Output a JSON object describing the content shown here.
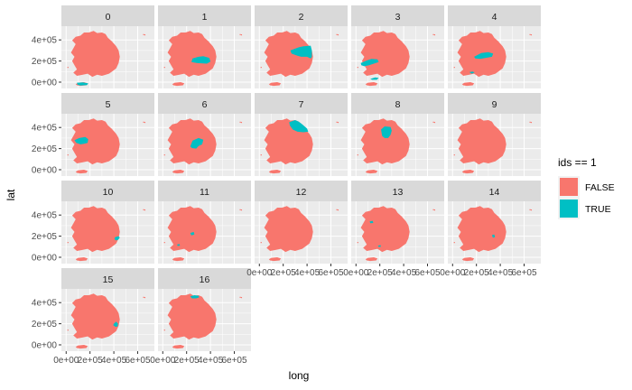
{
  "chart_data": {
    "type": "faceted-map",
    "xlabel": "long",
    "ylabel": "lat",
    "x_ticks": [
      "0e+00",
      "2e+05",
      "4e+05",
      "6e+05"
    ],
    "y_ticks": [
      "0e+00",
      "2e+05",
      "4e+05"
    ],
    "xlim": [
      -40000,
      740000
    ],
    "ylim": [
      -60000,
      530000
    ],
    "legend": {
      "title": "ids == 1",
      "placement": "right",
      "entries": [
        {
          "label": "FALSE",
          "color": "#F8766D"
        },
        {
          "label": "TRUE",
          "color": "#00BFC4"
        }
      ]
    },
    "base_shape": {
      "mainland": [
        [
          330000,
          455000
        ],
        [
          300000,
          470000
        ],
        [
          260000,
          465000
        ],
        [
          230000,
          485000
        ],
        [
          190000,
          470000
        ],
        [
          150000,
          470000
        ],
        [
          120000,
          440000
        ],
        [
          80000,
          430000
        ],
        [
          50000,
          395000
        ],
        [
          80000,
          360000
        ],
        [
          60000,
          320000
        ],
        [
          40000,
          280000
        ],
        [
          70000,
          240000
        ],
        [
          50000,
          200000
        ],
        [
          70000,
          160000
        ],
        [
          90000,
          120000
        ],
        [
          60000,
          90000
        ],
        [
          90000,
          60000
        ],
        [
          140000,
          70000
        ],
        [
          180000,
          80000
        ],
        [
          220000,
          50000
        ],
        [
          260000,
          70000
        ],
        [
          300000,
          60000
        ],
        [
          360000,
          80000
        ],
        [
          420000,
          130000
        ],
        [
          440000,
          180000
        ],
        [
          450000,
          240000
        ],
        [
          440000,
          300000
        ],
        [
          420000,
          340000
        ],
        [
          380000,
          390000
        ],
        [
          350000,
          420000
        ]
      ],
      "jeju": [
        [
          80000,
          -20000
        ],
        [
          100000,
          -5000
        ],
        [
          150000,
          0
        ],
        [
          180000,
          -10000
        ],
        [
          170000,
          -30000
        ],
        [
          120000,
          -35000
        ],
        [
          90000,
          -30000
        ]
      ],
      "islets": [
        [
          650000,
          450000
        ],
        [
          660000,
          448000
        ],
        [
          15000,
          140000
        ]
      ]
    },
    "facets": [
      {
        "label": "0",
        "true_regions": [
          [
            [
              90000,
              -5000
            ],
            [
              140000,
              -2000
            ],
            [
              185000,
              -12000
            ],
            [
              175000,
              -28000
            ],
            [
              120000,
              -32000
            ],
            [
              95000,
              -25000
            ]
          ]
        ]
      },
      {
        "label": "1",
        "true_regions": [
          [
            [
              240000,
              190000
            ],
            [
              290000,
              180000
            ],
            [
              370000,
              175000
            ],
            [
              400000,
              195000
            ],
            [
              390000,
              230000
            ],
            [
              340000,
              245000
            ],
            [
              300000,
              240000
            ],
            [
              250000,
              225000
            ]
          ]
        ]
      },
      {
        "label": "2",
        "true_regions": [
          [
            [
              260000,
              300000
            ],
            [
              330000,
              330000
            ],
            [
              370000,
              340000
            ],
            [
              430000,
              345000
            ],
            [
              440000,
              300000
            ],
            [
              440000,
              240000
            ],
            [
              430000,
              225000
            ],
            [
              400000,
              240000
            ],
            [
              350000,
              240000
            ],
            [
              320000,
              250000
            ],
            [
              270000,
              270000
            ]
          ]
        ]
      },
      {
        "label": "3",
        "true_regions": [
          [
            [
              40000,
              180000
            ],
            [
              90000,
              205000
            ],
            [
              130000,
              220000
            ],
            [
              180000,
              215000
            ],
            [
              190000,
              190000
            ],
            [
              150000,
              175000
            ],
            [
              110000,
              160000
            ],
            [
              70000,
              150000
            ],
            [
              45000,
              160000
            ]
          ],
          [
            [
              120000,
              30000
            ],
            [
              160000,
              45000
            ],
            [
              190000,
              40000
            ],
            [
              175000,
              22000
            ],
            [
              135000,
              22000
            ]
          ]
        ]
      },
      {
        "label": "4",
        "true_regions": [
          [
            [
              180000,
              240000
            ],
            [
              240000,
              275000
            ],
            [
              300000,
              285000
            ],
            [
              340000,
              270000
            ],
            [
              330000,
              240000
            ],
            [
              280000,
              230000
            ],
            [
              230000,
              220000
            ],
            [
              190000,
              225000
            ]
          ],
          [
            [
              140000,
              95000
            ],
            [
              170000,
              100000
            ],
            [
              185000,
              90000
            ],
            [
              160000,
              80000
            ]
          ]
        ]
      },
      {
        "label": "5",
        "true_regions": [
          [
            [
              70000,
              280000
            ],
            [
              110000,
              300000
            ],
            [
              160000,
              310000
            ],
            [
              185000,
              290000
            ],
            [
              180000,
              255000
            ],
            [
              150000,
              245000
            ],
            [
              120000,
              240000
            ],
            [
              85000,
              255000
            ]
          ]
        ]
      },
      {
        "label": "6",
        "true_regions": [
          [
            [
              230000,
              220000
            ],
            [
              250000,
              275000
            ],
            [
              300000,
              300000
            ],
            [
              340000,
              285000
            ],
            [
              330000,
              240000
            ],
            [
              300000,
              225000
            ],
            [
              280000,
              200000
            ],
            [
              245000,
              205000
            ]
          ]
        ]
      },
      {
        "label": "7",
        "true_regions": [
          [
            [
              250000,
              450000
            ],
            [
              300000,
              470000
            ],
            [
              330000,
              455000
            ],
            [
              360000,
              430000
            ],
            [
              400000,
              390000
            ],
            [
              410000,
              360000
            ],
            [
              370000,
              355000
            ],
            [
              320000,
              360000
            ],
            [
              280000,
              380000
            ],
            [
              255000,
              420000
            ]
          ]
        ]
      },
      {
        "label": "8",
        "true_regions": [
          [
            [
              210000,
              380000
            ],
            [
              240000,
              410000
            ],
            [
              290000,
              405000
            ],
            [
              300000,
              370000
            ],
            [
              290000,
              330000
            ],
            [
              270000,
              300000
            ],
            [
              240000,
              300000
            ],
            [
              220000,
              320000
            ]
          ]
        ]
      },
      {
        "label": "9",
        "true_regions": []
      },
      {
        "label": "10",
        "true_regions": [
          [
            [
              410000,
              190000
            ],
            [
              440000,
              200000
            ],
            [
              450000,
              185000
            ],
            [
              435000,
              165000
            ],
            [
              415000,
              160000
            ],
            [
              405000,
              175000
            ]
          ]
        ]
      },
      {
        "label": "11",
        "true_regions": [
          [
            [
              230000,
              230000
            ],
            [
              260000,
              240000
            ],
            [
              265000,
              215000
            ],
            [
              240000,
              208000
            ]
          ],
          [
            [
              120000,
              120000
            ],
            [
              140000,
              125000
            ],
            [
              145000,
              110000
            ],
            [
              125000,
              108000
            ]
          ]
        ]
      },
      {
        "label": "12",
        "true_regions": []
      },
      {
        "label": "13",
        "true_regions": [
          [
            [
              115000,
              340000
            ],
            [
              140000,
              345000
            ],
            [
              145000,
              325000
            ],
            [
              120000,
              322000
            ]
          ],
          [
            [
              185000,
              110000
            ],
            [
              205000,
              115000
            ],
            [
              210000,
              100000
            ],
            [
              190000,
              98000
            ]
          ]
        ]
      },
      {
        "label": "14",
        "true_regions": [
          [
            [
              330000,
              210000
            ],
            [
              350000,
              215000
            ],
            [
              355000,
              190000
            ],
            [
              338000,
              185000
            ]
          ]
        ]
      },
      {
        "label": "15",
        "true_regions": [
          [
            [
              400000,
              200000
            ],
            [
              420000,
              220000
            ],
            [
              435000,
              200000
            ],
            [
              432000,
              175000
            ],
            [
              415000,
              170000
            ],
            [
              395000,
              185000
            ]
          ]
        ]
      },
      {
        "label": "16",
        "true_regions": [
          [
            [
              230000,
              460000
            ],
            [
              265000,
              470000
            ],
            [
              300000,
              465000
            ],
            [
              305000,
              450000
            ],
            [
              280000,
              440000
            ],
            [
              245000,
              440000
            ]
          ]
        ]
      }
    ]
  }
}
